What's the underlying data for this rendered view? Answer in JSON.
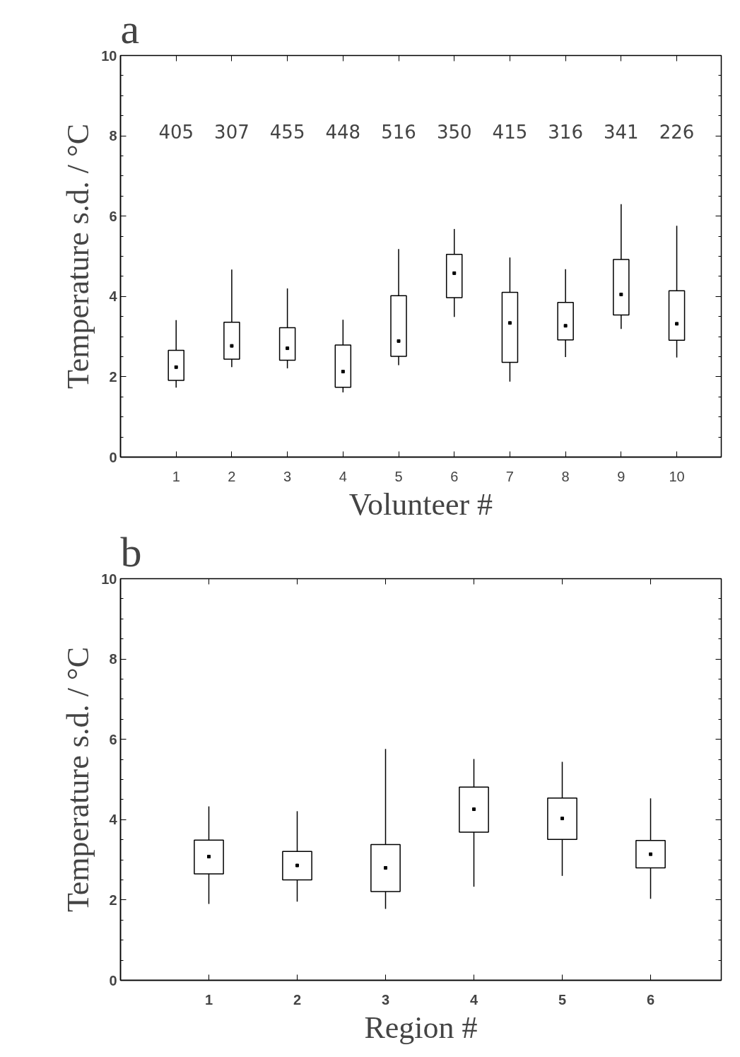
{
  "chart_data": [
    {
      "type": "box",
      "title": "a",
      "xlabel": "Volunteer #",
      "ylabel": "Temperature s.d. / °C",
      "categories": [
        "1",
        "2",
        "3",
        "4",
        "5",
        "6",
        "7",
        "8",
        "9",
        "10"
      ],
      "ylim": [
        0,
        10
      ],
      "yticks": [
        0,
        2,
        4,
        6,
        8,
        10
      ],
      "grid": false,
      "boxes": [
        {
          "low": 1.73,
          "q1": 1.91,
          "median": 2.24,
          "q3": 2.66,
          "high": 3.41
        },
        {
          "low": 2.24,
          "q1": 2.44,
          "median": 2.77,
          "q3": 3.36,
          "high": 4.67
        },
        {
          "low": 2.21,
          "q1": 2.41,
          "median": 2.71,
          "q3": 3.22,
          "high": 4.2
        },
        {
          "low": 1.61,
          "q1": 1.74,
          "median": 2.13,
          "q3": 2.79,
          "high": 3.42
        },
        {
          "low": 2.29,
          "q1": 2.51,
          "median": 2.89,
          "q3": 4.02,
          "high": 5.18
        },
        {
          "low": 3.49,
          "q1": 3.97,
          "median": 4.58,
          "q3": 5.05,
          "high": 5.68
        },
        {
          "low": 1.88,
          "q1": 2.36,
          "median": 3.34,
          "q3": 4.1,
          "high": 4.97
        },
        {
          "low": 2.49,
          "q1": 2.92,
          "median": 3.27,
          "q3": 3.85,
          "high": 4.68
        },
        {
          "low": 3.19,
          "q1": 3.54,
          "median": 4.05,
          "q3": 4.92,
          "high": 6.3
        },
        {
          "low": 2.48,
          "q1": 2.91,
          "median": 3.32,
          "q3": 4.14,
          "high": 5.76
        }
      ],
      "annotations": [
        "405",
        "307",
        "455",
        "448",
        "516",
        "350",
        "415",
        "316",
        "341",
        "226"
      ]
    },
    {
      "type": "box",
      "title": "b",
      "xlabel": "Region #",
      "ylabel": "Temperature s.d. / °C",
      "categories": [
        "1",
        "2",
        "3",
        "4",
        "5",
        "6"
      ],
      "ylim": [
        0,
        10
      ],
      "yticks": [
        0,
        2,
        4,
        6,
        8,
        10
      ],
      "grid": false,
      "boxes": [
        {
          "low": 1.9,
          "q1": 2.65,
          "median": 3.08,
          "q3": 3.49,
          "high": 4.33
        },
        {
          "low": 1.96,
          "q1": 2.5,
          "median": 2.86,
          "q3": 3.21,
          "high": 4.21
        },
        {
          "low": 1.78,
          "q1": 2.21,
          "median": 2.8,
          "q3": 3.38,
          "high": 5.76
        },
        {
          "low": 2.33,
          "q1": 3.69,
          "median": 4.26,
          "q3": 4.81,
          "high": 5.51
        },
        {
          "low": 2.6,
          "q1": 3.51,
          "median": 4.03,
          "q3": 4.54,
          "high": 5.44
        },
        {
          "low": 2.03,
          "q1": 2.8,
          "median": 3.14,
          "q3": 3.48,
          "high": 4.53
        }
      ]
    }
  ]
}
